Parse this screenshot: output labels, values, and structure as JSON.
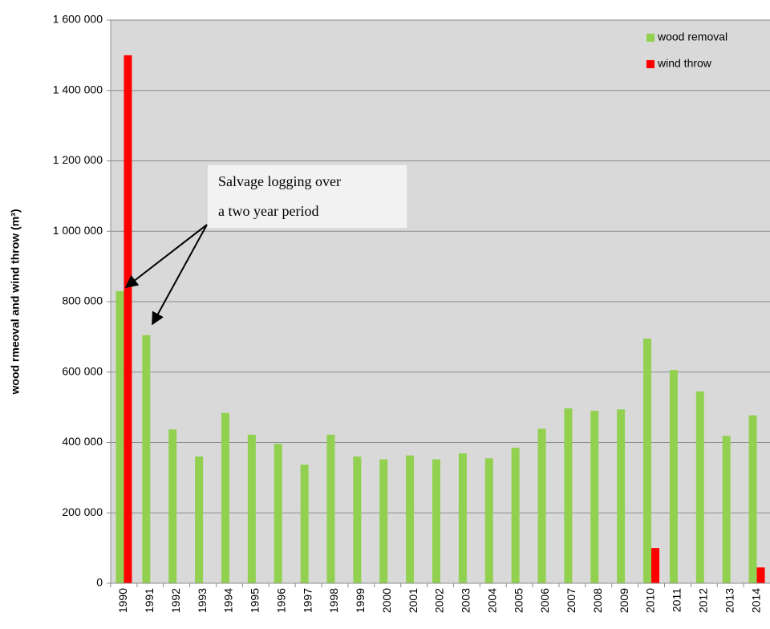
{
  "chart_data": {
    "type": "bar",
    "y_label": "wood rmeoval and wind throw (m³)",
    "annotation": [
      "Salvage logging over",
      "a two year period"
    ],
    "categories": [
      "1990",
      "1991",
      "1992",
      "1993",
      "1994",
      "1995",
      "1996",
      "1997",
      "1998",
      "1999",
      "2000",
      "2001",
      "2002",
      "2003",
      "2004",
      "2005",
      "2006",
      "2007",
      "2008",
      "2009",
      "2010",
      "2011",
      "2012",
      "2013",
      "2014"
    ],
    "series": [
      {
        "name": "wood removal",
        "color": "#92d050",
        "values": [
          830000,
          705000,
          437000,
          360000,
          484000,
          422000,
          396000,
          337000,
          422000,
          360000,
          352000,
          363000,
          352000,
          369000,
          355000,
          385000,
          439000,
          497000,
          490000,
          494000,
          695000,
          606000,
          545000,
          419000,
          477000
        ]
      },
      {
        "name": "wind throw",
        "color": "#ff0000",
        "values": [
          1500000,
          null,
          null,
          null,
          null,
          null,
          null,
          null,
          null,
          null,
          null,
          null,
          null,
          null,
          null,
          null,
          null,
          null,
          null,
          null,
          100000,
          null,
          null,
          null,
          45000
        ]
      }
    ],
    "ylim": [
      0,
      1600000
    ],
    "yticks": [
      0,
      {
        "value": 200000,
        "label": "200 000"
      },
      {
        "value": 400000,
        "label": "400 000"
      },
      {
        "value": 600000,
        "label": "600 000"
      },
      {
        "value": 800000,
        "label": "800 000"
      },
      {
        "value": 1000000,
        "label": "1 000 000"
      },
      {
        "value": 1200000,
        "label": "1 200 000"
      },
      {
        "value": 1400000,
        "label": "1 400 000"
      },
      {
        "value": 1600000,
        "label": "1 600 000"
      }
    ],
    "grid": true,
    "legend": "top-right",
    "background": "#d9d9d9"
  }
}
